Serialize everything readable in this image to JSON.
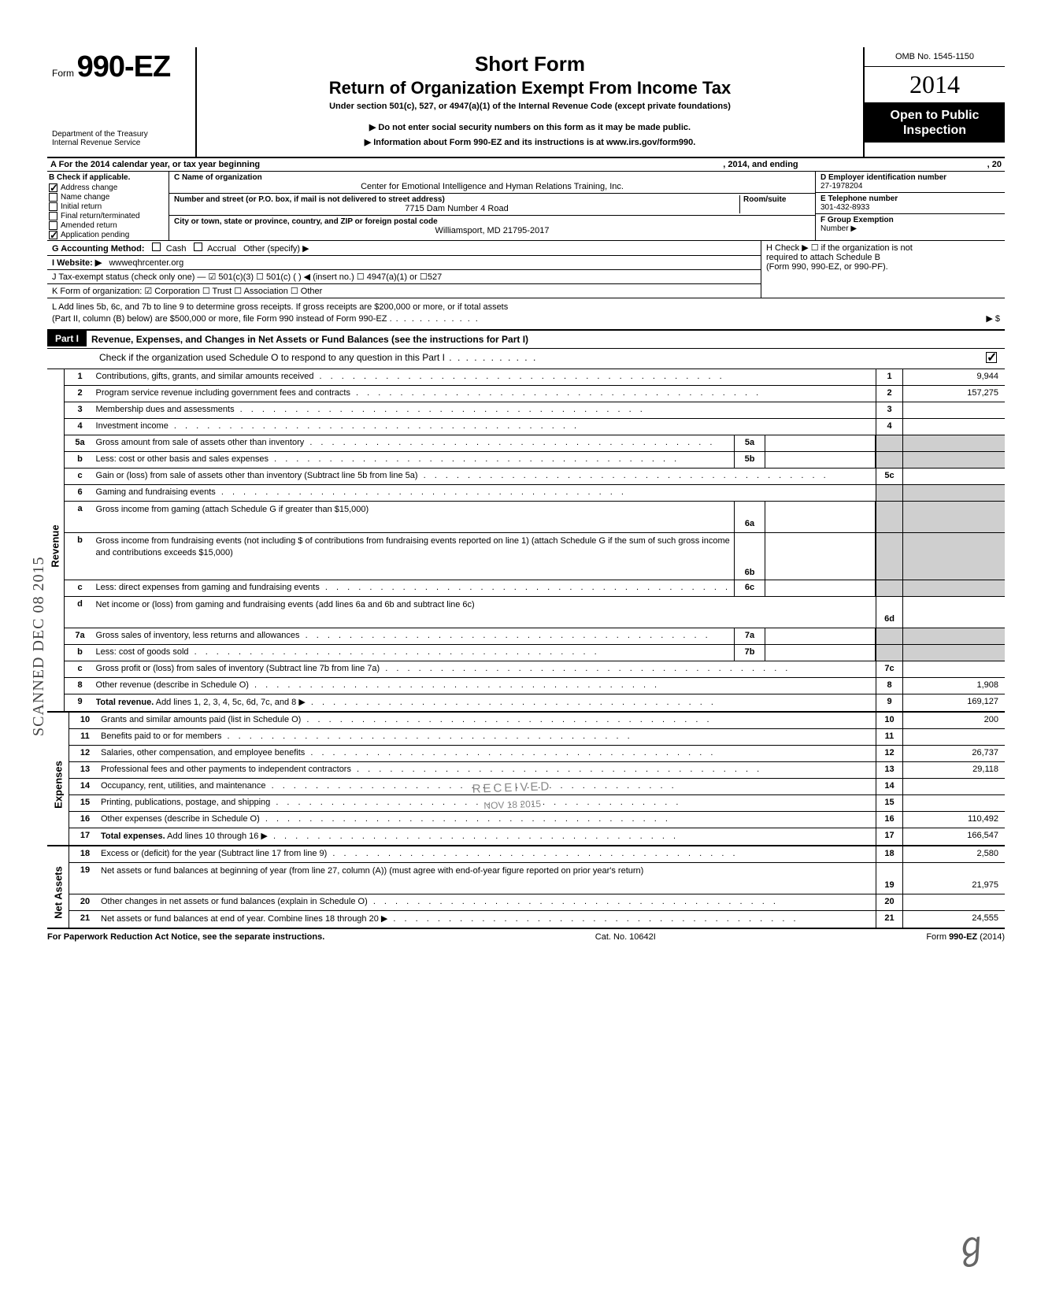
{
  "header": {
    "form_prefix": "Form",
    "form_number": "990-EZ",
    "dept1": "Department of the Treasury",
    "dept2": "Internal Revenue Service",
    "title_main": "Short Form",
    "title_sub": "Return of Organization Exempt From Income Tax",
    "title_small": "Under section 501(c), 527, or 4947(a)(1) of the Internal Revenue Code (except private foundations)",
    "arrow1": "▶ Do not enter social security numbers on this form as it may be made public.",
    "arrow2": "▶ Information about Form 990-EZ and its instructions is at www.irs.gov/form990.",
    "omb": "OMB No. 1545-1150",
    "year_outline": "20",
    "year_bold": "14",
    "open1": "Open to Public",
    "open2": "Inspection"
  },
  "rowA": {
    "left": "A  For the 2014 calendar year, or tax year beginning",
    "mid": ", 2014, and ending",
    "right": ", 20"
  },
  "colB": {
    "header": "B  Check if applicable.",
    "items": [
      {
        "label": "Address change",
        "checked": true
      },
      {
        "label": "Name change",
        "checked": false
      },
      {
        "label": "Initial return",
        "checked": false
      },
      {
        "label": "Final return/terminated",
        "checked": false
      },
      {
        "label": "Amended return",
        "checked": false
      },
      {
        "label": "Application pending",
        "checked": true
      }
    ]
  },
  "colC": {
    "name_label": "C  Name of organization",
    "name_value": "Center for Emotional Intelligence and Hyman Relations Training, Inc.",
    "addr_label": "Number and street (or P.O. box, if mail is not delivered to street address)",
    "room_label": "Room/suite",
    "addr_value": "7715 Dam Number 4 Road",
    "city_label": "City or town, state or province, country, and ZIP or foreign postal code",
    "city_value": "Williamsport, MD 21795-2017"
  },
  "colD": {
    "d_label": "D Employer identification number",
    "d_value": "27-1978204",
    "e_label": "E Telephone number",
    "e_value": "301-432-8933",
    "f_label": "F Group Exemption",
    "f_label2": "Number ▶"
  },
  "rowG": {
    "label": "G  Accounting Method:",
    "cash": "Cash",
    "accrual": "Accrual",
    "other": "Other (specify) ▶"
  },
  "rowH": {
    "line1": "H  Check ▶ ☐ if the organization is not",
    "line2": "required to attach Schedule B",
    "line3": "(Form 990, 990-EZ, or 990-PF)."
  },
  "rowI": {
    "label": "I   Website: ▶",
    "value": "wwweqhrcenter.org"
  },
  "rowJ": {
    "text": "J  Tax-exempt status (check only one) — ☑ 501(c)(3)   ☐ 501(c) (        ) ◀ (insert no.) ☐ 4947(a)(1) or   ☐527"
  },
  "rowK": {
    "text": "K  Form of organization:   ☑ Corporation      ☐ Trust            ☐ Association     ☐ Other"
  },
  "rowL": {
    "line1": "L  Add lines 5b, 6c, and 7b to line 9 to determine gross receipts. If gross receipts are $200,000 or more, or if total assets",
    "line2": "(Part II, column (B) below) are $500,000 or more, file Form 990 instead of Form 990-EZ .",
    "arrow": "▶   $"
  },
  "part1": {
    "badge": "Part I",
    "title": "Revenue, Expenses, and Changes in Net Assets or Fund Balances (see the instructions for Part I)",
    "check_text": "Check if the organization used Schedule O to respond to any question in this Part I"
  },
  "sections": {
    "revenue_label": "Revenue",
    "expenses_label": "Expenses",
    "netassets_label": "Net Assets"
  },
  "lines": [
    {
      "no": "1",
      "desc": "Contributions, gifts, grants, and similar amounts received",
      "num": "1",
      "val": "9,944"
    },
    {
      "no": "2",
      "desc": "Program service revenue including government fees and contracts",
      "num": "2",
      "val": "157,275"
    },
    {
      "no": "3",
      "desc": "Membership dues and assessments",
      "num": "3",
      "val": ""
    },
    {
      "no": "4",
      "desc": "Investment income",
      "num": "4",
      "val": ""
    },
    {
      "no": "5a",
      "desc": "Gross amount from sale of assets other than inventory",
      "midnum": "5a",
      "midval": ""
    },
    {
      "no": "b",
      "desc": "Less: cost or other basis and sales expenses",
      "midnum": "5b",
      "midval": ""
    },
    {
      "no": "c",
      "desc": "Gain or (loss) from sale of assets other than inventory (Subtract line 5b from line 5a)",
      "num": "5c",
      "val": ""
    },
    {
      "no": "6",
      "desc": "Gaming and fundraising events",
      "shade": true
    },
    {
      "no": "a",
      "desc": "Gross income from gaming (attach Schedule G if greater than $15,000)",
      "midnum": "6a",
      "midval": "",
      "twoline": true
    },
    {
      "no": "b",
      "desc": "Gross income from fundraising events (not including  $                    of contributions from fundraising events reported on line 1) (attach Schedule G if the sum of such gross income and contributions exceeds $15,000)",
      "midnum": "6b",
      "midval": "",
      "threeline": true
    },
    {
      "no": "c",
      "desc": "Less: direct expenses from gaming and fundraising events",
      "midnum": "6c",
      "midval": ""
    },
    {
      "no": "d",
      "desc": "Net income or (loss) from gaming and fundraising events (add lines 6a and 6b and subtract line 6c)",
      "num": "6d",
      "val": "",
      "twoline": true
    },
    {
      "no": "7a",
      "desc": "Gross sales of inventory, less returns and allowances",
      "midnum": "7a",
      "midval": ""
    },
    {
      "no": "b",
      "desc": "Less: cost of goods sold",
      "midnum": "7b",
      "midval": ""
    },
    {
      "no": "c",
      "desc": "Gross profit or (loss) from sales of inventory (Subtract line 7b from line 7a)",
      "num": "7c",
      "val": ""
    },
    {
      "no": "8",
      "desc": "Other revenue (describe in Schedule O)",
      "num": "8",
      "val": "1,908"
    },
    {
      "no": "9",
      "desc": "Total revenue. Add lines 1, 2, 3, 4, 5c, 6d, 7c, and 8",
      "num": "9",
      "val": "169,127",
      "bold": true,
      "arrow": true
    }
  ],
  "exp_lines": [
    {
      "no": "10",
      "desc": "Grants and similar amounts paid (list in Schedule O)",
      "num": "10",
      "val": "200"
    },
    {
      "no": "11",
      "desc": "Benefits paid to or for members",
      "num": "11",
      "val": ""
    },
    {
      "no": "12",
      "desc": "Salaries, other compensation, and employee benefits",
      "num": "12",
      "val": "26,737"
    },
    {
      "no": "13",
      "desc": "Professional fees and other payments to independent contractors",
      "num": "13",
      "val": "29,118"
    },
    {
      "no": "14",
      "desc": "Occupancy, rent, utilities, and maintenance",
      "num": "14",
      "val": ""
    },
    {
      "no": "15",
      "desc": "Printing, publications, postage, and shipping",
      "num": "15",
      "val": ""
    },
    {
      "no": "16",
      "desc": "Other expenses (describe in Schedule O)",
      "num": "16",
      "val": "110,492"
    },
    {
      "no": "17",
      "desc": "Total expenses. Add lines 10 through 16",
      "num": "17",
      "val": "166,547",
      "bold": true,
      "arrow": true
    }
  ],
  "net_lines": [
    {
      "no": "18",
      "desc": "Excess or (deficit) for the year (Subtract line 17 from line 9)",
      "num": "18",
      "val": "2,580"
    },
    {
      "no": "19",
      "desc": "Net assets or fund balances at beginning of year (from line 27, column (A)) (must agree with end-of-year figure reported on prior year's return)",
      "num": "19",
      "val": "21,975",
      "twoline": true
    },
    {
      "no": "20",
      "desc": "Other changes in net assets or fund balances (explain in Schedule O)",
      "num": "20",
      "val": ""
    },
    {
      "no": "21",
      "desc": "Net assets or fund balances at end of year. Combine lines 18 through 20",
      "num": "21",
      "val": "24,555",
      "arrow": true
    }
  ],
  "footer": {
    "left": "For Paperwork Reduction Act Notice, see the separate instructions.",
    "mid": "Cat. No. 10642I",
    "right_prefix": "Form ",
    "right_form": "990-EZ",
    "right_year": " (2014)"
  },
  "stamps": {
    "scanned": "SCANNED DEC 08 2015",
    "received1": "RECEIVED",
    "received2": "NOV 18 2015"
  }
}
